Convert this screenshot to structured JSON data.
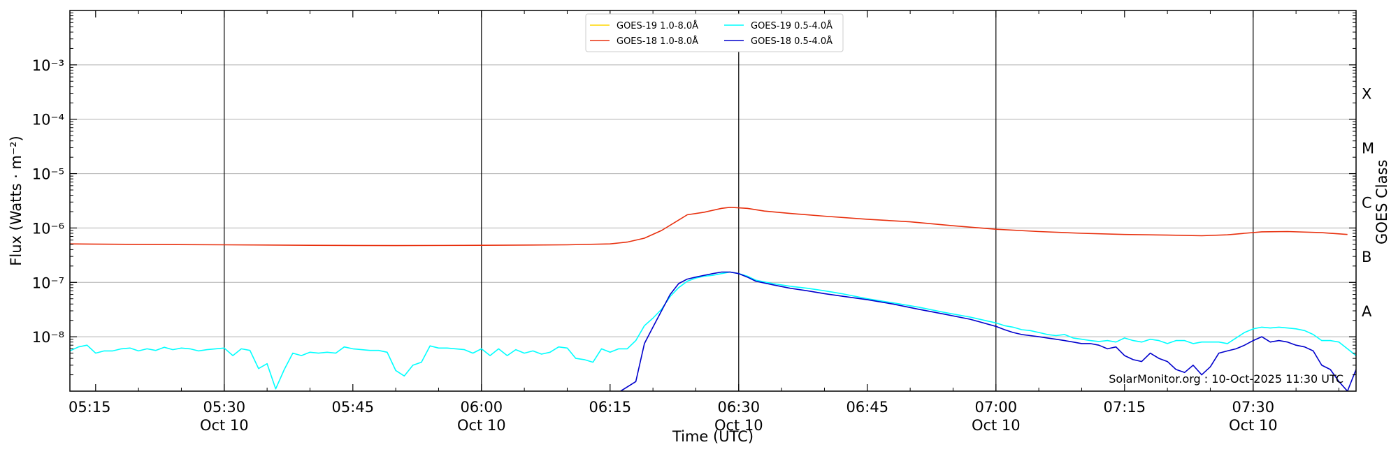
{
  "chart_data": {
    "type": "line",
    "xlabel": "Time (UTC)",
    "ylabel": "Flux (Watts · m⁻²)",
    "y2label": "GOES Class",
    "y_scale": "log",
    "ylim": [
      1e-09,
      0.01
    ],
    "xlim": [
      "05:12",
      "07:42"
    ],
    "grid": "horizontal-major plus vertical at half hours",
    "legend_position": "top-center",
    "credit": "SolarMonitor.org : 10-Oct-2025 11:30 UTC",
    "y_ticks": [
      {
        "value": 1e-08,
        "label": "10⁻⁸"
      },
      {
        "value": 1e-07,
        "label": "10⁻⁷"
      },
      {
        "value": 1e-06,
        "label": "10⁻⁶"
      },
      {
        "value": 1e-05,
        "label": "10⁻⁵"
      },
      {
        "value": 0.0001,
        "label": "10⁻⁴"
      },
      {
        "value": 0.001,
        "label": "10⁻³"
      }
    ],
    "x_ticks": [
      {
        "time": "05:15",
        "label": "05:15",
        "sublabel": ""
      },
      {
        "time": "05:30",
        "label": "05:30",
        "sublabel": "Oct 10"
      },
      {
        "time": "05:45",
        "label": "05:45",
        "sublabel": ""
      },
      {
        "time": "06:00",
        "label": "06:00",
        "sublabel": "Oct 10"
      },
      {
        "time": "06:15",
        "label": "06:15",
        "sublabel": ""
      },
      {
        "time": "06:30",
        "label": "06:30",
        "sublabel": "Oct 10"
      },
      {
        "time": "06:45",
        "label": "06:45",
        "sublabel": ""
      },
      {
        "time": "07:00",
        "label": "07:00",
        "sublabel": "Oct 10"
      },
      {
        "time": "07:15",
        "label": "07:15",
        "sublabel": ""
      },
      {
        "time": "07:30",
        "label": "07:30",
        "sublabel": "Oct 10"
      }
    ],
    "vlines": [
      "05:30",
      "06:00",
      "06:30",
      "07:00",
      "07:30"
    ],
    "goes_classes": [
      {
        "label": "A",
        "value": 3e-08
      },
      {
        "label": "B",
        "value": 3e-07
      },
      {
        "label": "C",
        "value": 3e-06
      },
      {
        "label": "M",
        "value": 3e-05
      },
      {
        "label": "X",
        "value": 0.0003
      }
    ],
    "series": [
      {
        "name": "GOES-19 1.0-8.0Å",
        "color": "#FFD700",
        "points": []
      },
      {
        "name": "GOES-18 1.0-8.0Å",
        "color": "#E8300E",
        "points": [
          [
            "05:12",
            5.1e-07
          ],
          [
            "05:20",
            5e-07
          ],
          [
            "05:30",
            4.9e-07
          ],
          [
            "05:40",
            4.8e-07
          ],
          [
            "05:50",
            4.75e-07
          ],
          [
            "06:00",
            4.8e-07
          ],
          [
            "06:10",
            4.9e-07
          ],
          [
            "06:15",
            5.1e-07
          ],
          [
            "06:17",
            5.5e-07
          ],
          [
            "06:19",
            6.5e-07
          ],
          [
            "06:21",
            9e-07
          ],
          [
            "06:23",
            1.4e-06
          ],
          [
            "06:24",
            1.75e-06
          ],
          [
            "06:26",
            1.95e-06
          ],
          [
            "06:28",
            2.3e-06
          ],
          [
            "06:29",
            2.4e-06
          ],
          [
            "06:31",
            2.3e-06
          ],
          [
            "06:33",
            2.05e-06
          ],
          [
            "06:36",
            1.85e-06
          ],
          [
            "06:40",
            1.65e-06
          ],
          [
            "06:45",
            1.45e-06
          ],
          [
            "06:50",
            1.3e-06
          ],
          [
            "06:55",
            1.1e-06
          ],
          [
            "07:00",
            9.5e-07
          ],
          [
            "07:05",
            8.6e-07
          ],
          [
            "07:10",
            8e-07
          ],
          [
            "07:15",
            7.6e-07
          ],
          [
            "07:20",
            7.4e-07
          ],
          [
            "07:24",
            7.2e-07
          ],
          [
            "07:27",
            7.5e-07
          ],
          [
            "07:29",
            8e-07
          ],
          [
            "07:31",
            8.5e-07
          ],
          [
            "07:34",
            8.6e-07
          ],
          [
            "07:38",
            8.2e-07
          ],
          [
            "07:41",
            7.6e-07
          ]
        ]
      },
      {
        "name": "GOES-19 0.5-4.0Å",
        "color": "#00FFFF",
        "points": [
          [
            "05:12",
            5.5e-09
          ],
          [
            "05:13",
            6.5e-09
          ],
          [
            "05:14",
            7e-09
          ],
          [
            "05:15",
            5e-09
          ],
          [
            "05:16",
            5.5e-09
          ],
          [
            "05:17",
            5.5e-09
          ],
          [
            "05:18",
            6e-09
          ],
          [
            "05:19",
            6.2e-09
          ],
          [
            "05:20",
            5.5e-09
          ],
          [
            "05:21",
            6e-09
          ],
          [
            "05:22",
            5.6e-09
          ],
          [
            "05:23",
            6.4e-09
          ],
          [
            "05:24",
            5.8e-09
          ],
          [
            "05:25",
            6.2e-09
          ],
          [
            "05:26",
            6e-09
          ],
          [
            "05:27",
            5.5e-09
          ],
          [
            "05:28",
            5.8e-09
          ],
          [
            "05:29",
            6e-09
          ],
          [
            "05:30",
            6.2e-09
          ],
          [
            "05:31",
            4.5e-09
          ],
          [
            "05:32",
            6e-09
          ],
          [
            "05:33",
            5.6e-09
          ],
          [
            "05:34",
            2.6e-09
          ],
          [
            "05:35",
            3.2e-09
          ],
          [
            "05:36",
            1.1e-09
          ],
          [
            "05:37",
            2.5e-09
          ],
          [
            "05:38",
            5e-09
          ],
          [
            "05:39",
            4.5e-09
          ],
          [
            "05:40",
            5.2e-09
          ],
          [
            "05:41",
            5e-09
          ],
          [
            "05:42",
            5.2e-09
          ],
          [
            "05:43",
            5e-09
          ],
          [
            "05:44",
            6.5e-09
          ],
          [
            "05:45",
            6e-09
          ],
          [
            "05:46",
            5.8e-09
          ],
          [
            "05:47",
            5.6e-09
          ],
          [
            "05:48",
            5.6e-09
          ],
          [
            "05:49",
            5.2e-09
          ],
          [
            "05:50",
            2.4e-09
          ],
          [
            "05:51",
            1.9e-09
          ],
          [
            "05:52",
            3e-09
          ],
          [
            "05:53",
            3.4e-09
          ],
          [
            "05:54",
            6.8e-09
          ],
          [
            "05:55",
            6.2e-09
          ],
          [
            "05:56",
            6.2e-09
          ],
          [
            "05:57",
            6e-09
          ],
          [
            "05:58",
            5.8e-09
          ],
          [
            "05:59",
            5e-09
          ],
          [
            "06:00",
            6e-09
          ],
          [
            "06:01",
            4.5e-09
          ],
          [
            "06:02",
            6e-09
          ],
          [
            "06:03",
            4.5e-09
          ],
          [
            "06:04",
            5.8e-09
          ],
          [
            "06:05",
            5e-09
          ],
          [
            "06:06",
            5.5e-09
          ],
          [
            "06:07",
            4.8e-09
          ],
          [
            "06:08",
            5.2e-09
          ],
          [
            "06:09",
            6.5e-09
          ],
          [
            "06:10",
            6.2e-09
          ],
          [
            "06:11",
            4e-09
          ],
          [
            "06:12",
            3.8e-09
          ],
          [
            "06:13",
            3.4e-09
          ],
          [
            "06:14",
            6e-09
          ],
          [
            "06:15",
            5.2e-09
          ],
          [
            "06:16",
            6e-09
          ],
          [
            "06:17",
            6e-09
          ],
          [
            "06:18",
            8.5e-09
          ],
          [
            "06:19",
            1.6e-08
          ],
          [
            "06:20",
            2.2e-08
          ],
          [
            "06:21",
            3.2e-08
          ],
          [
            "06:22",
            5.5e-08
          ],
          [
            "06:23",
            8e-08
          ],
          [
            "06:24",
            1.05e-07
          ],
          [
            "06:25",
            1.2e-07
          ],
          [
            "06:26",
            1.3e-07
          ],
          [
            "06:27",
            1.35e-07
          ],
          [
            "06:28",
            1.45e-07
          ],
          [
            "06:29",
            1.55e-07
          ],
          [
            "06:30",
            1.45e-07
          ],
          [
            "06:31",
            1.3e-07
          ],
          [
            "06:32",
            1.1e-07
          ],
          [
            "06:34",
            9.5e-08
          ],
          [
            "06:36",
            8.5e-08
          ],
          [
            "06:38",
            7.8e-08
          ],
          [
            "06:40",
            7e-08
          ],
          [
            "06:42",
            6.2e-08
          ],
          [
            "06:45",
            5e-08
          ],
          [
            "06:48",
            4.2e-08
          ],
          [
            "06:51",
            3.5e-08
          ],
          [
            "06:54",
            2.8e-08
          ],
          [
            "06:57",
            2.3e-08
          ],
          [
            "07:00",
            1.8e-08
          ],
          [
            "07:01",
            1.6e-08
          ],
          [
            "07:02",
            1.5e-08
          ],
          [
            "07:03",
            1.35e-08
          ],
          [
            "07:04",
            1.3e-08
          ],
          [
            "07:05",
            1.2e-08
          ],
          [
            "07:06",
            1.1e-08
          ],
          [
            "07:07",
            1.05e-08
          ],
          [
            "07:08",
            1.1e-08
          ],
          [
            "07:09",
            9.5e-09
          ],
          [
            "07:10",
            9e-09
          ],
          [
            "07:11",
            8.5e-09
          ],
          [
            "07:12",
            8.2e-09
          ],
          [
            "07:13",
            8.5e-09
          ],
          [
            "07:14",
            8e-09
          ],
          [
            "07:15",
            9.5e-09
          ],
          [
            "07:16",
            8.5e-09
          ],
          [
            "07:17",
            8e-09
          ],
          [
            "07:18",
            9e-09
          ],
          [
            "07:19",
            8.5e-09
          ],
          [
            "07:20",
            7.5e-09
          ],
          [
            "07:21",
            8.5e-09
          ],
          [
            "07:22",
            8.5e-09
          ],
          [
            "07:23",
            7.5e-09
          ],
          [
            "07:24",
            8e-09
          ],
          [
            "07:25",
            8e-09
          ],
          [
            "07:26",
            8e-09
          ],
          [
            "07:27",
            7.5e-09
          ],
          [
            "07:28",
            9.5e-09
          ],
          [
            "07:29",
            1.2e-08
          ],
          [
            "07:30",
            1.4e-08
          ],
          [
            "07:31",
            1.5e-08
          ],
          [
            "07:32",
            1.45e-08
          ],
          [
            "07:33",
            1.5e-08
          ],
          [
            "07:34",
            1.45e-08
          ],
          [
            "07:35",
            1.4e-08
          ],
          [
            "07:36",
            1.3e-08
          ],
          [
            "07:37",
            1.1e-08
          ],
          [
            "07:38",
            8.5e-09
          ],
          [
            "07:39",
            8.5e-09
          ],
          [
            "07:40",
            8e-09
          ],
          [
            "07:41",
            6e-09
          ],
          [
            "07:42",
            4.5e-09
          ]
        ]
      },
      {
        "name": "GOES-18 0.5-4.0Å",
        "color": "#0000CC",
        "points": [
          [
            "05:12",
            9.5e-10
          ],
          [
            "06:16",
            9.5e-10
          ],
          [
            "06:18",
            1.5e-09
          ],
          [
            "06:19",
            7.5e-09
          ],
          [
            "06:20",
            1.5e-08
          ],
          [
            "06:21",
            3e-08
          ],
          [
            "06:22",
            6e-08
          ],
          [
            "06:23",
            9.5e-08
          ],
          [
            "06:24",
            1.15e-07
          ],
          [
            "06:25",
            1.25e-07
          ],
          [
            "06:26",
            1.35e-07
          ],
          [
            "06:27",
            1.45e-07
          ],
          [
            "06:28",
            1.55e-07
          ],
          [
            "06:29",
            1.55e-07
          ],
          [
            "06:30",
            1.45e-07
          ],
          [
            "06:31",
            1.25e-07
          ],
          [
            "06:32",
            1.05e-07
          ],
          [
            "06:34",
            9e-08
          ],
          [
            "06:36",
            7.8e-08
          ],
          [
            "06:38",
            7e-08
          ],
          [
            "06:40",
            6.2e-08
          ],
          [
            "06:42",
            5.6e-08
          ],
          [
            "06:45",
            4.8e-08
          ],
          [
            "06:48",
            4e-08
          ],
          [
            "06:51",
            3.2e-08
          ],
          [
            "06:54",
            2.6e-08
          ],
          [
            "06:57",
            2.1e-08
          ],
          [
            "07:00",
            1.55e-08
          ],
          [
            "07:01",
            1.35e-08
          ],
          [
            "07:02",
            1.2e-08
          ],
          [
            "07:03",
            1.1e-08
          ],
          [
            "07:04",
            1.05e-08
          ],
          [
            "07:05",
            1e-08
          ],
          [
            "07:06",
            9.5e-09
          ],
          [
            "07:07",
            9e-09
          ],
          [
            "07:08",
            8.5e-09
          ],
          [
            "07:09",
            8e-09
          ],
          [
            "07:10",
            7.5e-09
          ],
          [
            "07:11",
            7.5e-09
          ],
          [
            "07:12",
            7e-09
          ],
          [
            "07:13",
            6e-09
          ],
          [
            "07:14",
            6.5e-09
          ],
          [
            "07:15",
            4.5e-09
          ],
          [
            "07:16",
            3.8e-09
          ],
          [
            "07:17",
            3.5e-09
          ],
          [
            "07:18",
            5e-09
          ],
          [
            "07:19",
            4e-09
          ],
          [
            "07:20",
            3.5e-09
          ],
          [
            "07:21",
            2.5e-09
          ],
          [
            "07:22",
            2.2e-09
          ],
          [
            "07:23",
            3e-09
          ],
          [
            "07:24",
            2e-09
          ],
          [
            "07:25",
            2.8e-09
          ],
          [
            "07:26",
            5e-09
          ],
          [
            "07:27",
            5.5e-09
          ],
          [
            "07:28",
            6e-09
          ],
          [
            "07:29",
            7e-09
          ],
          [
            "07:30",
            8.5e-09
          ],
          [
            "07:31",
            1e-08
          ],
          [
            "07:32",
            8e-09
          ],
          [
            "07:33",
            8.5e-09
          ],
          [
            "07:34",
            8e-09
          ],
          [
            "07:35",
            7e-09
          ],
          [
            "07:36",
            6.5e-09
          ],
          [
            "07:37",
            5.5e-09
          ],
          [
            "07:38",
            3e-09
          ],
          [
            "07:39",
            2.5e-09
          ],
          [
            "07:40",
            1.5e-09
          ],
          [
            "07:41",
            1e-09
          ],
          [
            "07:42",
            2.5e-09
          ]
        ]
      }
    ]
  }
}
